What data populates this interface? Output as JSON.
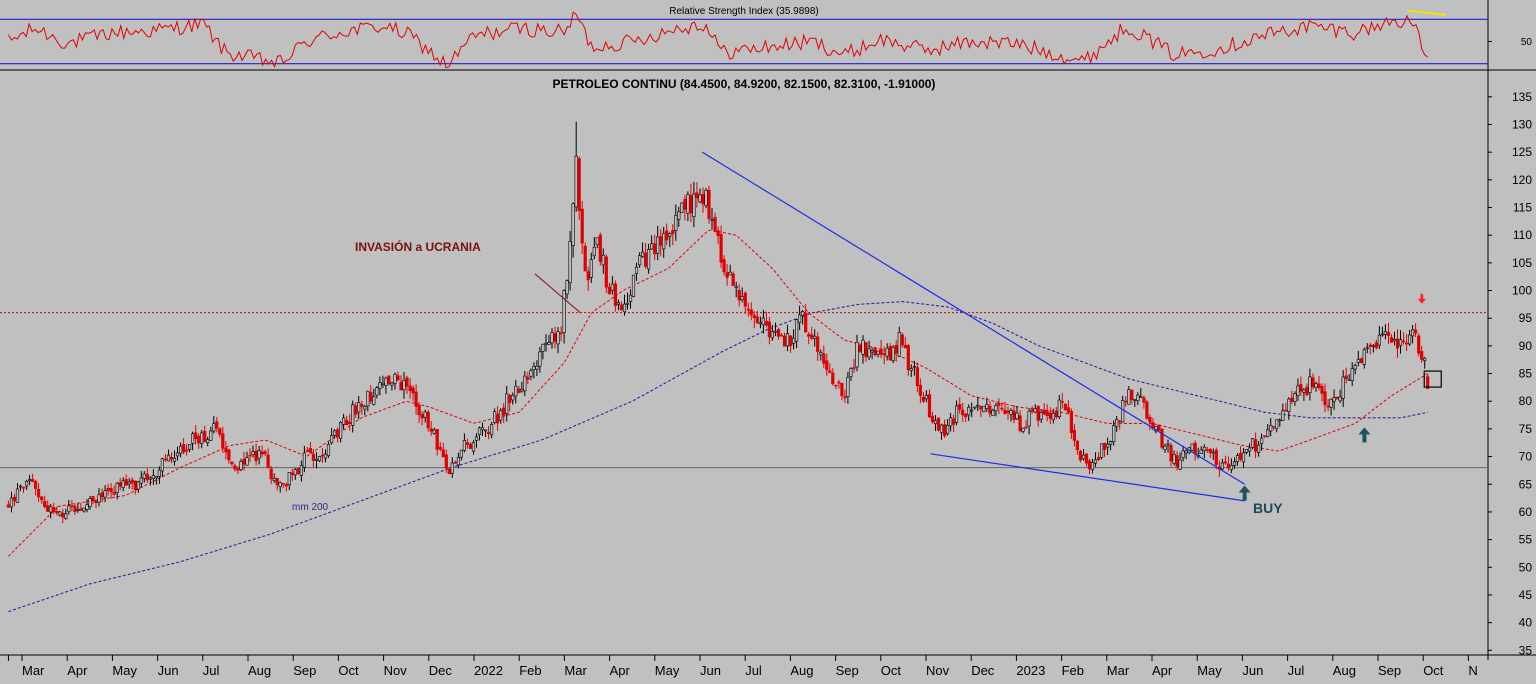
{
  "chart_data": {
    "type": "candlestick",
    "title": "PETROLEO CONTINU (84.4500, 84.9200, 82.1500, 82.3100, -1.91000)",
    "last_bar": {
      "open": 84.45,
      "high": 84.92,
      "low": 82.15,
      "close": 82.31,
      "change": -1.91
    },
    "y_axis": {
      "ticks": [
        35,
        40,
        45,
        50,
        55,
        60,
        65,
        70,
        75,
        80,
        85,
        90,
        95,
        100,
        105,
        110,
        115,
        120,
        125,
        130,
        135
      ],
      "range": [
        33,
        140
      ]
    },
    "x_axis": {
      "ticks": [
        "Mar",
        "Apr",
        "May",
        "Jun",
        "Jul",
        "Aug",
        "Sep",
        "Oct",
        "Nov",
        "Dec",
        "2022",
        "Feb",
        "Mar",
        "Apr",
        "May",
        "Jun",
        "Jul",
        "Aug",
        "Sep",
        "Oct",
        "Nov",
        "Dec",
        "2023",
        "Feb",
        "Mar",
        "Apr",
        "May",
        "Jun",
        "Jul",
        "Aug",
        "Sep",
        "Oct",
        "N"
      ],
      "tick_months_index": [
        2,
        3,
        4,
        5,
        6,
        7,
        8,
        9,
        10,
        11,
        12,
        13,
        14,
        15,
        16,
        17,
        18,
        19,
        20,
        21,
        22,
        23,
        24,
        25,
        26,
        27,
        28,
        29,
        30,
        31,
        32,
        33,
        34
      ],
      "range_months_index": [
        1.7,
        34.1
      ]
    },
    "price_anchors": [
      {
        "m": 1.7,
        "v": 61
      },
      {
        "m": 2.2,
        "v": 66
      },
      {
        "m": 2.6,
        "v": 60
      },
      {
        "m": 3.2,
        "v": 60
      },
      {
        "m": 4.0,
        "v": 64
      },
      {
        "m": 4.8,
        "v": 66
      },
      {
        "m": 5.6,
        "v": 72
      },
      {
        "m": 6.3,
        "v": 75
      },
      {
        "m": 6.7,
        "v": 68
      },
      {
        "m": 7.3,
        "v": 71
      },
      {
        "m": 7.7,
        "v": 64
      },
      {
        "m": 8.3,
        "v": 70
      },
      {
        "m": 8.8,
        "v": 72
      },
      {
        "m": 9.5,
        "v": 80
      },
      {
        "m": 10.1,
        "v": 84
      },
      {
        "m": 10.6,
        "v": 82
      },
      {
        "m": 11.1,
        "v": 74
      },
      {
        "m": 11.4,
        "v": 67
      },
      {
        "m": 11.8,
        "v": 72
      },
      {
        "m": 12.3,
        "v": 75
      },
      {
        "m": 13.0,
        "v": 83
      },
      {
        "m": 13.6,
        "v": 90
      },
      {
        "m": 13.9,
        "v": 92
      },
      {
        "m": 14.1,
        "v": 105
      },
      {
        "m": 14.25,
        "v": 124
      },
      {
        "m": 14.45,
        "v": 102
      },
      {
        "m": 14.75,
        "v": 108
      },
      {
        "m": 15.0,
        "v": 100
      },
      {
        "m": 15.3,
        "v": 97
      },
      {
        "m": 15.6,
        "v": 104
      },
      {
        "m": 16.1,
        "v": 108
      },
      {
        "m": 16.6,
        "v": 114
      },
      {
        "m": 17.1,
        "v": 118
      },
      {
        "m": 17.4,
        "v": 108
      },
      {
        "m": 17.8,
        "v": 100
      },
      {
        "m": 18.3,
        "v": 95
      },
      {
        "m": 18.9,
        "v": 90
      },
      {
        "m": 19.3,
        "v": 95
      },
      {
        "m": 19.7,
        "v": 88
      },
      {
        "m": 20.2,
        "v": 81
      },
      {
        "m": 20.5,
        "v": 90
      },
      {
        "m": 21.0,
        "v": 87
      },
      {
        "m": 21.4,
        "v": 91
      },
      {
        "m": 21.9,
        "v": 82
      },
      {
        "m": 22.3,
        "v": 74
      },
      {
        "m": 22.7,
        "v": 78
      },
      {
        "m": 23.2,
        "v": 78
      },
      {
        "m": 23.6,
        "v": 80
      },
      {
        "m": 24.1,
        "v": 76
      },
      {
        "m": 24.6,
        "v": 78
      },
      {
        "m": 25.1,
        "v": 79
      },
      {
        "m": 25.4,
        "v": 70
      },
      {
        "m": 25.6,
        "v": 68
      },
      {
        "m": 26.1,
        "v": 74
      },
      {
        "m": 26.45,
        "v": 81
      },
      {
        "m": 26.8,
        "v": 79
      },
      {
        "m": 27.2,
        "v": 73
      },
      {
        "m": 27.5,
        "v": 69
      },
      {
        "m": 27.9,
        "v": 72
      },
      {
        "m": 28.3,
        "v": 70
      },
      {
        "m": 28.6,
        "v": 68
      },
      {
        "m": 29.0,
        "v": 70
      },
      {
        "m": 29.5,
        "v": 74
      },
      {
        "m": 30.0,
        "v": 80
      },
      {
        "m": 30.5,
        "v": 83
      },
      {
        "m": 30.9,
        "v": 79
      },
      {
        "m": 31.5,
        "v": 86
      },
      {
        "m": 32.1,
        "v": 92
      },
      {
        "m": 32.5,
        "v": 90
      },
      {
        "m": 32.7,
        "v": 93
      },
      {
        "m": 33.0,
        "v": 88
      },
      {
        "m": 33.1,
        "v": 82.31
      }
    ],
    "ma_short_anchors": [
      {
        "m": 1.7,
        "v": 52
      },
      {
        "m": 2.8,
        "v": 61
      },
      {
        "m": 4.3,
        "v": 63
      },
      {
        "m": 5.5,
        "v": 68
      },
      {
        "m": 6.6,
        "v": 72
      },
      {
        "m": 7.4,
        "v": 73
      },
      {
        "m": 8.3,
        "v": 70
      },
      {
        "m": 9.5,
        "v": 77
      },
      {
        "m": 10.5,
        "v": 80
      },
      {
        "m": 11.0,
        "v": 79
      },
      {
        "m": 12.0,
        "v": 76
      },
      {
        "m": 13.0,
        "v": 78
      },
      {
        "m": 14.0,
        "v": 87
      },
      {
        "m": 14.6,
        "v": 96
      },
      {
        "m": 15.3,
        "v": 100
      },
      {
        "m": 16.3,
        "v": 104
      },
      {
        "m": 17.2,
        "v": 111
      },
      {
        "m": 17.8,
        "v": 110
      },
      {
        "m": 18.6,
        "v": 104
      },
      {
        "m": 19.4,
        "v": 96
      },
      {
        "m": 20.2,
        "v": 91
      },
      {
        "m": 21.2,
        "v": 89
      },
      {
        "m": 22.0,
        "v": 86
      },
      {
        "m": 23.0,
        "v": 81
      },
      {
        "m": 24.0,
        "v": 79
      },
      {
        "m": 25.0,
        "v": 78
      },
      {
        "m": 26.0,
        "v": 76
      },
      {
        "m": 27.0,
        "v": 76
      },
      {
        "m": 28.0,
        "v": 74
      },
      {
        "m": 29.0,
        "v": 72
      },
      {
        "m": 29.8,
        "v": 71
      },
      {
        "m": 30.5,
        "v": 73
      },
      {
        "m": 31.5,
        "v": 76
      },
      {
        "m": 32.3,
        "v": 81
      },
      {
        "m": 33.1,
        "v": 85
      }
    ],
    "ma_long_anchors": [
      {
        "m": 1.7,
        "v": 42
      },
      {
        "m": 3.5,
        "v": 47
      },
      {
        "m": 5.5,
        "v": 51
      },
      {
        "m": 7.5,
        "v": 56
      },
      {
        "m": 9.5,
        "v": 62
      },
      {
        "m": 11.5,
        "v": 68
      },
      {
        "m": 13.5,
        "v": 73
      },
      {
        "m": 15.5,
        "v": 80
      },
      {
        "m": 17.5,
        "v": 89
      },
      {
        "m": 18.5,
        "v": 93
      },
      {
        "m": 19.5,
        "v": 96
      },
      {
        "m": 20.5,
        "v": 97.5
      },
      {
        "m": 21.5,
        "v": 98
      },
      {
        "m": 22.5,
        "v": 97
      },
      {
        "m": 23.5,
        "v": 94
      },
      {
        "m": 24.5,
        "v": 90
      },
      {
        "m": 25.5,
        "v": 87
      },
      {
        "m": 26.5,
        "v": 84
      },
      {
        "m": 27.5,
        "v": 82
      },
      {
        "m": 28.5,
        "v": 80
      },
      {
        "m": 29.5,
        "v": 78
      },
      {
        "m": 30.5,
        "v": 77
      },
      {
        "m": 31.5,
        "v": 77
      },
      {
        "m": 32.5,
        "v": 77
      },
      {
        "m": 33.1,
        "v": 78
      }
    ],
    "resistance_level": 96,
    "support_level": 68,
    "trendlines": [
      {
        "from": {
          "m": 17.05,
          "v": 125
        },
        "to": {
          "m": 29.05,
          "v": 65
        }
      },
      {
        "from": {
          "m": 22.1,
          "v": 70.5
        },
        "to": {
          "m": 29.05,
          "v": 62
        }
      },
      {
        "from": {
          "m": 13.35,
          "v": 103
        },
        "to": {
          "m": 14.35,
          "v": 96
        }
      }
    ],
    "buy_arrows": [
      {
        "m": 29.05,
        "v": 63.5
      },
      {
        "m": 31.7,
        "v": 74
      }
    ],
    "sell_arrow": {
      "m": 32.97,
      "v": 98.5
    },
    "box_marker": {
      "m": 33.2,
      "v": 84
    },
    "annotations": {
      "invasion": "INVASIÓN a UCRANIA",
      "ma200": "mm 200",
      "buy": "BUY"
    },
    "rsi": {
      "title": "Relative Strength Index (35.9898)",
      "value": 35.9898,
      "ticks": [
        50
      ],
      "upper_level": 70,
      "lower_level": 30,
      "anchors": [
        {
          "m": 1.7,
          "v": 50
        },
        {
          "m": 2.3,
          "v": 62
        },
        {
          "m": 3.0,
          "v": 48
        },
        {
          "m": 4.0,
          "v": 58
        },
        {
          "m": 5.0,
          "v": 60
        },
        {
          "m": 6.0,
          "v": 66
        },
        {
          "m": 6.5,
          "v": 40
        },
        {
          "m": 7.7,
          "v": 30
        },
        {
          "m": 8.3,
          "v": 50
        },
        {
          "m": 9.0,
          "v": 58
        },
        {
          "m": 10.0,
          "v": 64
        },
        {
          "m": 10.6,
          "v": 55
        },
        {
          "m": 11.4,
          "v": 28
        },
        {
          "m": 12.0,
          "v": 55
        },
        {
          "m": 13.0,
          "v": 62
        },
        {
          "m": 14.0,
          "v": 58
        },
        {
          "m": 14.25,
          "v": 75
        },
        {
          "m": 14.6,
          "v": 45
        },
        {
          "m": 15.5,
          "v": 50
        },
        {
          "m": 16.5,
          "v": 62
        },
        {
          "m": 17.1,
          "v": 66
        },
        {
          "m": 17.5,
          "v": 40
        },
        {
          "m": 18.5,
          "v": 45
        },
        {
          "m": 19.5,
          "v": 50
        },
        {
          "m": 20.2,
          "v": 38
        },
        {
          "m": 21.0,
          "v": 52
        },
        {
          "m": 22.0,
          "v": 42
        },
        {
          "m": 23.0,
          "v": 50
        },
        {
          "m": 24.0,
          "v": 48
        },
        {
          "m": 25.5,
          "v": 32
        },
        {
          "m": 26.45,
          "v": 64
        },
        {
          "m": 27.5,
          "v": 38
        },
        {
          "m": 28.5,
          "v": 44
        },
        {
          "m": 29.5,
          "v": 56
        },
        {
          "m": 30.5,
          "v": 64
        },
        {
          "m": 31.5,
          "v": 58
        },
        {
          "m": 32.3,
          "v": 68
        },
        {
          "m": 32.7,
          "v": 70
        },
        {
          "m": 33.1,
          "v": 35.99
        }
      ],
      "divergence_line": {
        "from": {
          "m": 32.65,
          "v": 78
        },
        "to": {
          "m": 33.5,
          "v": 74
        }
      }
    }
  }
}
